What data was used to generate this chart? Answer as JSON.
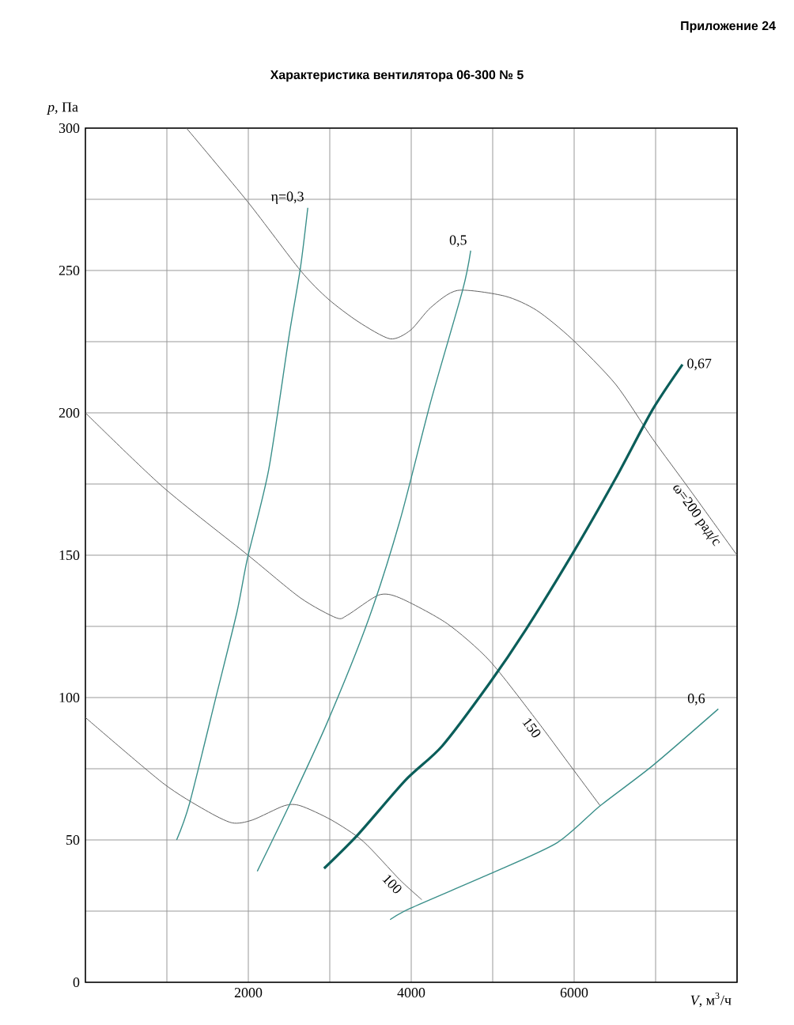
{
  "chart_data": {
    "type": "line",
    "title": "Характеристика вентилятора 06-300 № 5",
    "annotations": [
      "Приложение 24"
    ],
    "xlabel": "*V*, м$^{3}$/ч",
    "ylabel": "*p*, Па",
    "xlim": [
      0,
      8000
    ],
    "ylim": [
      0,
      300
    ],
    "xticks": [
      {
        "value": 1000,
        "label": null
      },
      2000,
      {
        "value": 3000,
        "label": null
      },
      4000,
      {
        "value": 5000,
        "label": null
      },
      6000,
      {
        "value": 7000,
        "label": null
      },
      {
        "value": 8000,
        "label": null
      }
    ],
    "yticks": [
      0,
      {
        "value": 25,
        "label": null
      },
      50,
      {
        "value": 75,
        "label": null
      },
      100,
      {
        "value": 125,
        "label": null
      },
      150,
      {
        "value": 175,
        "label": null
      },
      200,
      {
        "value": 225,
        "label": null
      },
      250,
      {
        "value": 275,
        "label": null
      },
      300
    ],
    "grid": true,
    "series": [
      {
        "name": "ω=200 рад/с",
        "color": "#606060",
        "x": [
          1240,
          1996,
          2640,
          2980,
          3350,
          3740,
          3990,
          4240,
          4570,
          5150,
          5540,
          5970,
          6510,
          6960,
          7420,
          8000
        ],
        "values": [
          300,
          274,
          250,
          240,
          232,
          226,
          229,
          237,
          243,
          241,
          236,
          226,
          210,
          191,
          173,
          150
        ]
      },
      {
        "name": "150",
        "color": "#606060",
        "x": [
          0,
          950,
          1996,
          2640,
          3080,
          3220,
          3600,
          3860,
          4440,
          4960,
          5540,
          5930,
          6320
        ],
        "values": [
          200,
          174,
          150,
          135,
          128,
          129,
          136,
          135,
          126,
          113,
          92,
          77,
          62
        ]
      },
      {
        "name": "100",
        "color": "#606060",
        "x": [
          0,
          950,
          1470,
          1800,
          2050,
          2440,
          2640,
          3020,
          3410,
          3860,
          4130
        ],
        "values": [
          93,
          70,
          60.5,
          56,
          57,
          62,
          62,
          57,
          49.5,
          36,
          29
        ]
      },
      {
        "name": "η=0,3",
        "color": "#3a8f8a",
        "x": [
          1120,
          1280,
          1610,
          1860,
          1990,
          2250,
          2500,
          2640,
          2730
        ],
        "values": [
          50,
          63,
          101,
          130,
          149,
          180,
          227,
          251,
          272
        ]
      },
      {
        "name": "0,5",
        "color": "#3a8f8a",
        "x": [
          2110,
          2500,
          2965,
          3470,
          3860,
          4240,
          4630,
          4730
        ],
        "values": [
          39,
          62,
          91,
          127,
          162,
          204,
          243,
          257
        ]
      },
      {
        "name": "0,67",
        "color": "#0b5e5a",
        "x": [
          2930,
          3350,
          3930,
          4380,
          4960,
          5410,
          5990,
          6510,
          6960,
          7330
        ],
        "values": [
          40,
          52,
          71,
          83,
          105,
          124,
          151,
          177,
          201,
          217
        ]
      },
      {
        "name": "0,6",
        "color": "#3a8f8a",
        "x": [
          3740,
          3990,
          4960,
          5790,
          6320,
          6960,
          7770
        ],
        "values": [
          22,
          26,
          38,
          49,
          62,
          76,
          96
        ]
      }
    ]
  }
}
